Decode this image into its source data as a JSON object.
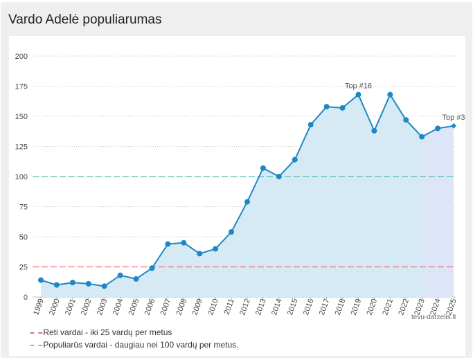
{
  "title": "Vardo Adelė populiarumas",
  "credit": "tevu-darzelis.lt",
  "legend": [
    {
      "label": "Reti vardai - iki 25 vardų per metus",
      "color": "#cc0066"
    },
    {
      "label": "Populiarūs vardai - daugiau nei 100 vardų per metus.",
      "color": "#22aa22"
    }
  ],
  "colors": {
    "line": "#1f87c4",
    "area": "#d6eaf6",
    "area_tail": "#dde6f8",
    "rare": "#ee6a6a",
    "popular": "#55bbaa"
  },
  "chart_data": {
    "type": "area",
    "x": [
      "1999",
      "2000",
      "2001",
      "2002",
      "2003",
      "2004",
      "2005",
      "2006",
      "2007",
      "2008",
      "2009",
      "2010",
      "2011",
      "2012",
      "2013",
      "2014",
      "2015",
      "2016",
      "2017",
      "2018",
      "2019",
      "2020",
      "2021",
      "2022",
      "2023",
      "2024",
      "2025"
    ],
    "series": [
      {
        "values": [
          14,
          10,
          12,
          11,
          9,
          18,
          15,
          24,
          44,
          45,
          36,
          40,
          54,
          79,
          107,
          100,
          114,
          143,
          158,
          157,
          168,
          138,
          168,
          147,
          133,
          140,
          142
        ]
      }
    ],
    "ylim": [
      0,
      200
    ],
    "yticks": [
      "0",
      "25",
      "50",
      "75",
      "100",
      "125",
      "150",
      "175",
      "200"
    ],
    "thresholds": [
      {
        "value": 25,
        "kind": "rare"
      },
      {
        "value": 100,
        "kind": "popular"
      }
    ],
    "annotations": [
      {
        "x": "2019",
        "text": "Top #16"
      },
      {
        "x": "2025",
        "text": "Top #3"
      }
    ],
    "grid": true
  }
}
